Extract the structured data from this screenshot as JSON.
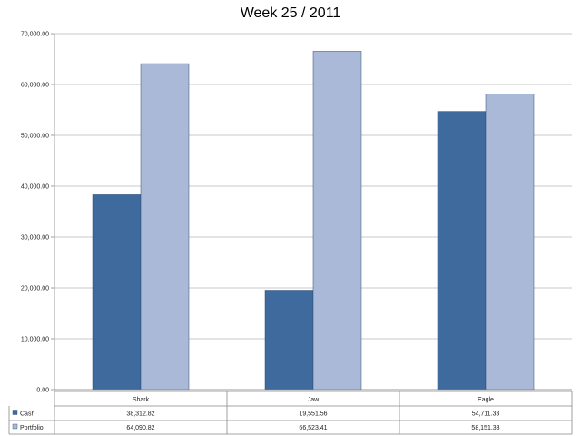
{
  "chart_data": {
    "type": "bar",
    "title": "Week 25 / 2011",
    "categories": [
      "Shark",
      "Jaw",
      "Eagle"
    ],
    "series": [
      {
        "name": "Cash",
        "color": "#3e6a9e",
        "values": [
          38312.82,
          19551.56,
          54711.33
        ],
        "labels": [
          "38,312.82",
          "19,551.56",
          "54,711.33"
        ]
      },
      {
        "name": "Portfolio",
        "color": "#aab9d8",
        "values": [
          64090.82,
          66523.41,
          58151.33
        ],
        "labels": [
          "64,090.82",
          "66,523.41",
          "58,151.33"
        ]
      }
    ],
    "ylim": [
      0,
      70000
    ],
    "yticks": [
      0,
      10000,
      20000,
      30000,
      40000,
      50000,
      60000,
      70000
    ],
    "ytick_labels": [
      "0.00",
      "10,000.00",
      "20,000.00",
      "30,000.00",
      "40,000.00",
      "50,000.00",
      "60,000.00",
      "70,000.00"
    ],
    "grid": true,
    "data_table": true,
    "legend": "data-table"
  }
}
